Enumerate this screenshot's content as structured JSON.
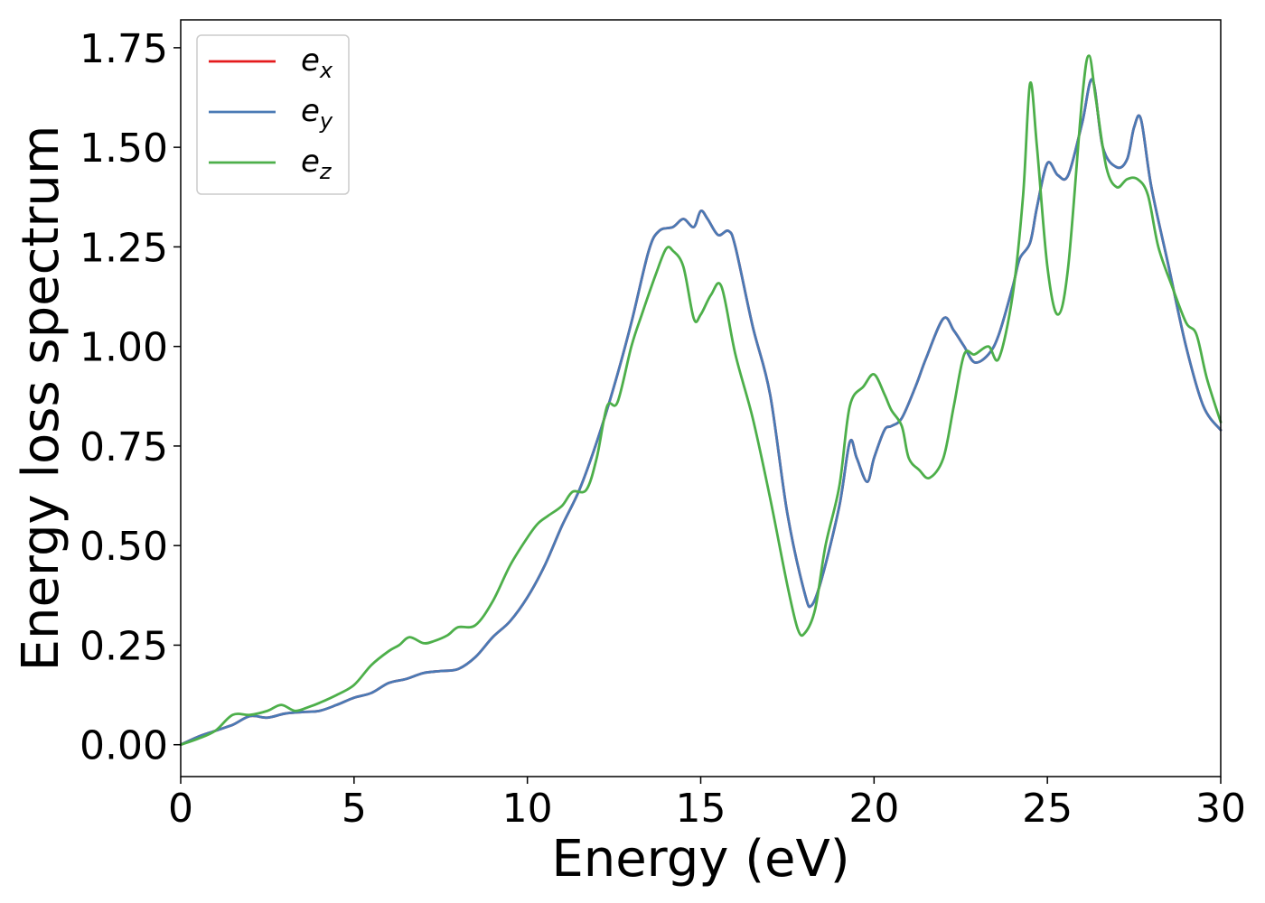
{
  "chart_data": {
    "type": "line",
    "xlabel": "Energy (eV)",
    "ylabel": "Energy loss spectrum",
    "xlim": [
      0,
      30
    ],
    "ylim": [
      -0.08,
      1.82
    ],
    "xticks": [
      0,
      5,
      10,
      15,
      20,
      25,
      30
    ],
    "xtick_labels": [
      "0",
      "5",
      "10",
      "15",
      "20",
      "25",
      "30"
    ],
    "yticks": [
      0.0,
      0.25,
      0.5,
      0.75,
      1.0,
      1.25,
      1.5,
      1.75
    ],
    "ytick_labels": [
      "0.00",
      "0.25",
      "0.50",
      "0.75",
      "1.00",
      "1.25",
      "1.50",
      "1.75"
    ],
    "grid": false,
    "legend_position": "top-left",
    "series": [
      {
        "name": "e_x",
        "label_base": "e",
        "label_sub": "x",
        "color": "#e41a1c",
        "x": [
          0,
          0.5,
          1.0,
          1.5,
          2.0,
          2.5,
          3.0,
          3.5,
          4.0,
          4.5,
          5.0,
          5.5,
          6.0,
          6.5,
          7.0,
          7.5,
          8.0,
          8.5,
          9.0,
          9.5,
          10.0,
          10.5,
          11.0,
          11.5,
          12.0,
          12.5,
          13.0,
          13.5,
          13.8,
          14.2,
          14.5,
          14.8,
          15.0,
          15.2,
          15.5,
          15.8,
          16.0,
          16.5,
          17.0,
          17.5,
          18.0,
          18.2,
          18.5,
          19.0,
          19.3,
          19.5,
          19.8,
          20.0,
          20.3,
          20.5,
          20.8,
          21.2,
          21.5,
          22.0,
          22.3,
          22.6,
          22.9,
          23.3,
          23.6,
          24.0,
          24.2,
          24.5,
          24.7,
          25.0,
          25.3,
          25.6,
          26.0,
          26.3,
          26.6,
          27.0,
          27.3,
          27.5,
          27.7,
          28.0,
          28.5,
          29.0,
          29.5,
          30.0
        ],
        "y": [
          0.0,
          0.02,
          0.035,
          0.05,
          0.072,
          0.068,
          0.078,
          0.082,
          0.085,
          0.1,
          0.118,
          0.13,
          0.155,
          0.165,
          0.18,
          0.185,
          0.19,
          0.22,
          0.27,
          0.31,
          0.37,
          0.45,
          0.55,
          0.64,
          0.76,
          0.9,
          1.06,
          1.24,
          1.29,
          1.3,
          1.32,
          1.3,
          1.34,
          1.32,
          1.28,
          1.29,
          1.25,
          1.05,
          0.88,
          0.58,
          0.38,
          0.35,
          0.42,
          0.6,
          0.76,
          0.72,
          0.66,
          0.72,
          0.79,
          0.8,
          0.82,
          0.9,
          0.97,
          1.07,
          1.04,
          1.0,
          0.96,
          0.98,
          1.03,
          1.15,
          1.22,
          1.26,
          1.35,
          1.46,
          1.43,
          1.43,
          1.56,
          1.67,
          1.5,
          1.45,
          1.47,
          1.55,
          1.57,
          1.4,
          1.2,
          1.0,
          0.85,
          0.79
        ]
      },
      {
        "name": "e_y",
        "label_base": "e",
        "label_sub": "y",
        "color": "#4a7ab5",
        "x": [
          0,
          0.5,
          1.0,
          1.5,
          2.0,
          2.5,
          3.0,
          3.5,
          4.0,
          4.5,
          5.0,
          5.5,
          6.0,
          6.5,
          7.0,
          7.5,
          8.0,
          8.5,
          9.0,
          9.5,
          10.0,
          10.5,
          11.0,
          11.5,
          12.0,
          12.5,
          13.0,
          13.5,
          13.8,
          14.2,
          14.5,
          14.8,
          15.0,
          15.2,
          15.5,
          15.8,
          16.0,
          16.5,
          17.0,
          17.5,
          18.0,
          18.2,
          18.5,
          19.0,
          19.3,
          19.5,
          19.8,
          20.0,
          20.3,
          20.5,
          20.8,
          21.2,
          21.5,
          22.0,
          22.3,
          22.6,
          22.9,
          23.3,
          23.6,
          24.0,
          24.2,
          24.5,
          24.7,
          25.0,
          25.3,
          25.6,
          26.0,
          26.3,
          26.6,
          27.0,
          27.3,
          27.5,
          27.7,
          28.0,
          28.5,
          29.0,
          29.5,
          30.0
        ],
        "y": [
          0.0,
          0.02,
          0.035,
          0.05,
          0.072,
          0.068,
          0.078,
          0.082,
          0.085,
          0.1,
          0.118,
          0.13,
          0.155,
          0.165,
          0.18,
          0.185,
          0.19,
          0.22,
          0.27,
          0.31,
          0.37,
          0.45,
          0.55,
          0.64,
          0.76,
          0.9,
          1.06,
          1.24,
          1.29,
          1.3,
          1.32,
          1.3,
          1.34,
          1.32,
          1.28,
          1.29,
          1.25,
          1.05,
          0.88,
          0.58,
          0.38,
          0.35,
          0.42,
          0.6,
          0.76,
          0.72,
          0.66,
          0.72,
          0.79,
          0.8,
          0.82,
          0.9,
          0.97,
          1.07,
          1.04,
          1.0,
          0.96,
          0.98,
          1.03,
          1.15,
          1.22,
          1.26,
          1.35,
          1.46,
          1.43,
          1.43,
          1.56,
          1.67,
          1.5,
          1.45,
          1.47,
          1.55,
          1.57,
          1.4,
          1.2,
          1.0,
          0.85,
          0.79
        ]
      },
      {
        "name": "e_z",
        "label_base": "e",
        "label_sub": "z",
        "color": "#4daf4a",
        "x": [
          0,
          0.5,
          1.0,
          1.5,
          2.0,
          2.5,
          2.9,
          3.3,
          3.7,
          4.0,
          4.5,
          5.0,
          5.5,
          6.0,
          6.3,
          6.6,
          7.0,
          7.3,
          7.7,
          8.0,
          8.5,
          9.0,
          9.5,
          10.0,
          10.3,
          10.6,
          11.0,
          11.3,
          11.7,
          12.0,
          12.3,
          12.6,
          13.0,
          13.3,
          13.7,
          14.0,
          14.2,
          14.5,
          14.8,
          15.0,
          15.3,
          15.6,
          16.0,
          16.5,
          17.0,
          17.5,
          17.8,
          18.0,
          18.3,
          18.6,
          19.0,
          19.3,
          19.7,
          20.0,
          20.3,
          20.5,
          20.8,
          21.0,
          21.3,
          21.6,
          22.0,
          22.3,
          22.6,
          22.9,
          23.3,
          23.6,
          24.0,
          24.3,
          24.5,
          24.7,
          25.0,
          25.3,
          25.6,
          26.0,
          26.2,
          26.4,
          26.7,
          27.0,
          27.3,
          27.6,
          27.9,
          28.2,
          28.6,
          29.0,
          29.3,
          29.6,
          30.0
        ],
        "y": [
          0.0,
          0.015,
          0.035,
          0.075,
          0.075,
          0.085,
          0.1,
          0.085,
          0.095,
          0.105,
          0.125,
          0.15,
          0.2,
          0.235,
          0.25,
          0.27,
          0.255,
          0.26,
          0.275,
          0.295,
          0.3,
          0.36,
          0.45,
          0.52,
          0.555,
          0.575,
          0.6,
          0.635,
          0.64,
          0.72,
          0.85,
          0.86,
          1.0,
          1.08,
          1.18,
          1.245,
          1.24,
          1.2,
          1.07,
          1.08,
          1.13,
          1.15,
          0.98,
          0.82,
          0.62,
          0.4,
          0.29,
          0.28,
          0.34,
          0.5,
          0.65,
          0.85,
          0.9,
          0.93,
          0.88,
          0.84,
          0.8,
          0.72,
          0.69,
          0.67,
          0.72,
          0.85,
          0.98,
          0.98,
          1.0,
          0.97,
          1.13,
          1.38,
          1.66,
          1.5,
          1.2,
          1.08,
          1.2,
          1.62,
          1.73,
          1.62,
          1.45,
          1.4,
          1.42,
          1.42,
          1.38,
          1.25,
          1.15,
          1.06,
          1.03,
          0.92,
          0.81
        ]
      }
    ]
  }
}
